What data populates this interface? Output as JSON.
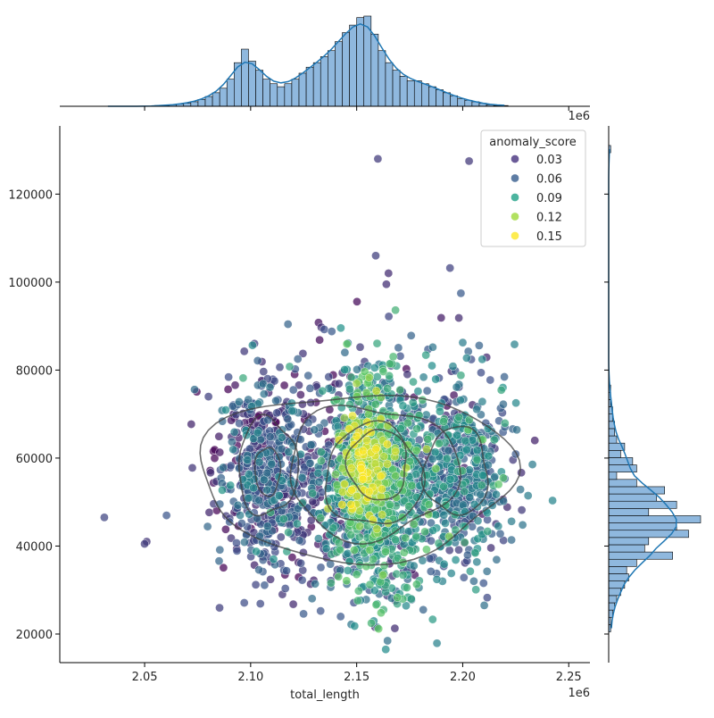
{
  "chart_data": {
    "type": "scatter",
    "title": "",
    "xlabel": "total_length",
    "ylabel": "",
    "x_offset_label": "1e6",
    "top_offset_label": "1e6",
    "xlim": [
      2.01,
      2.26
    ],
    "ylim": [
      13500,
      135500
    ],
    "x_ticks": [
      2.05,
      2.1,
      2.15,
      2.2,
      2.25
    ],
    "x_tick_labels": [
      "2.05",
      "2.10",
      "2.15",
      "2.20",
      "2.25"
    ],
    "y_ticks": [
      20000,
      40000,
      60000,
      80000,
      100000,
      120000
    ],
    "y_tick_labels": [
      "20000",
      "40000",
      "60000",
      "80000",
      "100000",
      "120000"
    ],
    "grid": false,
    "legend": {
      "title": "anomaly_score",
      "placement": "top-right",
      "entries": [
        {
          "label": "0.03",
          "color": "#46327e"
        },
        {
          "label": "0.06",
          "color": "#365c8d"
        },
        {
          "label": "0.09",
          "color": "#1fa187"
        },
        {
          "label": "0.12",
          "color": "#9fda3a"
        },
        {
          "label": "0.15",
          "color": "#fde725"
        }
      ]
    },
    "colormap": [
      "#440154",
      "#3b528b",
      "#21918c",
      "#5ec962",
      "#fde725"
    ],
    "score_range": [
      0.0,
      0.165
    ],
    "marginal_color": "#1f77b4",
    "marginal_fill": "#8fb8de",
    "kde_color": "#404040",
    "clusters": [
      {
        "cx": 2.107,
        "cy": 56000,
        "sx": 0.011,
        "sy": 10000,
        "n": 520,
        "score": 0.035
      },
      {
        "cx": 2.16,
        "cy": 55000,
        "sx": 0.011,
        "sy": 12500,
        "n": 950,
        "score": 0.085
      },
      {
        "cx": 2.155,
        "cy": 58000,
        "sx": 0.006,
        "sy": 6500,
        "n": 260,
        "score": 0.135
      },
      {
        "cx": 2.197,
        "cy": 56000,
        "sx": 0.012,
        "sy": 10500,
        "n": 520,
        "score": 0.06
      },
      {
        "cx": 2.15,
        "cy": 56000,
        "sx": 0.03,
        "sy": 14000,
        "n": 500,
        "score": 0.03
      }
    ],
    "outliers": [
      {
        "x": 2.16,
        "y": 128000
      },
      {
        "x": 2.203,
        "y": 127500
      },
      {
        "x": 2.159,
        "y": 106000
      },
      {
        "x": 2.194,
        "y": 103200
      },
      {
        "x": 2.165,
        "y": 102000
      },
      {
        "x": 2.164,
        "y": 99500
      },
      {
        "x": 2.031,
        "y": 46500
      },
      {
        "x": 2.05,
        "y": 40500
      },
      {
        "x": 2.051,
        "y": 41000
      },
      {
        "x": 2.168,
        "y": 21300
      },
      {
        "x": 2.234,
        "y": 64000
      }
    ],
    "kde_contours": [
      {
        "cx": 2.15,
        "cy": 56000,
        "rx": 0.074,
        "ry": 19000,
        "wobble": 0.06
      },
      {
        "cx": 2.157,
        "cy": 57000,
        "rx": 0.04,
        "ry": 15000,
        "wobble": 0.08
      },
      {
        "cx": 2.108,
        "cy": 58000,
        "rx": 0.014,
        "ry": 11000,
        "wobble": 0.07
      },
      {
        "cx": 2.158,
        "cy": 56000,
        "rx": 0.023,
        "ry": 11500,
        "wobble": 0.07
      },
      {
        "cx": 2.197,
        "cy": 57000,
        "rx": 0.015,
        "ry": 10000,
        "wobble": 0.07
      },
      {
        "cx": 2.16,
        "cy": 58500,
        "rx": 0.014,
        "ry": 8000,
        "wobble": 0.06
      },
      {
        "cx": 2.108,
        "cy": 57000,
        "rx": 0.006,
        "ry": 5500,
        "wobble": 0.05
      }
    ],
    "x_hist": {
      "start": 2.031,
      "bin_width": 0.0034,
      "counts": [
        0,
        0,
        0,
        0,
        0,
        0,
        0,
        1,
        1,
        2,
        3,
        4,
        6,
        9,
        13,
        18,
        24,
        36,
        58,
        76,
        60,
        48,
        36,
        30,
        26,
        30,
        36,
        44,
        52,
        58,
        66,
        74,
        86,
        98,
        108,
        118,
        120,
        96,
        74,
        58,
        48,
        40,
        34,
        34,
        30,
        26,
        22,
        18,
        14,
        10,
        8,
        6,
        4,
        2,
        1,
        1
      ]
    },
    "y_hist": {
      "start": 20500,
      "bin_width": 1650,
      "counts": [
        1,
        1,
        2,
        3,
        4,
        6,
        8,
        10,
        9,
        14,
        32,
        18,
        20,
        40,
        34,
        46,
        20,
        34,
        24,
        28,
        14,
        4,
        14,
        12,
        6,
        8,
        4,
        3,
        3,
        2,
        2,
        1,
        1,
        1,
        0,
        0,
        0,
        0,
        0,
        0,
        0,
        0,
        0,
        0,
        0,
        0,
        0,
        0,
        0,
        0,
        0,
        0,
        0,
        0,
        0,
        0,
        0,
        0,
        0,
        0,
        0,
        0,
        0,
        0,
        0,
        0,
        1
      ]
    }
  }
}
